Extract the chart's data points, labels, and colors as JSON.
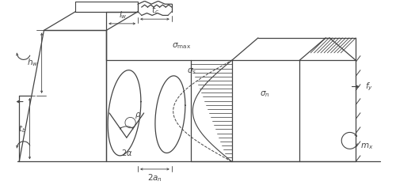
{
  "fig_width": 5.0,
  "fig_height": 2.34,
  "dpi": 100,
  "bg_color": "#ffffff",
  "lc": "#444444",
  "lw_main": 0.9,
  "lw_dim": 0.7,
  "lw_thin": 0.6
}
